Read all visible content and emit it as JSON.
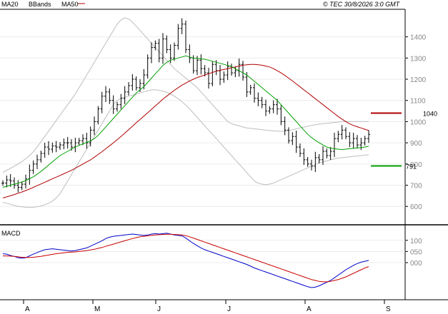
{
  "legend": [
    {
      "label": "MA20",
      "color": "#00a000"
    },
    {
      "label": "BBands",
      "color": "#b4b4b4"
    },
    {
      "label": "MA50",
      "color": "#b00000"
    }
  ],
  "copyright": "© TEC 30/8/2026 3:0 GMT",
  "macd_label": "MACD",
  "chart_data": [
    {
      "type": "ohlc",
      "title": "",
      "ylim": [
        520,
        1530
      ],
      "y_ticks": [
        "600",
        "700",
        "800",
        "900",
        "1000",
        "1100",
        "1200",
        "1300",
        "1400"
      ],
      "x_ticks": [
        "A",
        "M",
        "J",
        "J",
        "A",
        "S"
      ],
      "close_series": [
        710,
        725,
        720,
        700,
        690,
        705,
        730,
        770,
        800,
        820,
        850,
        880,
        870,
        885,
        880,
        890,
        900,
        900,
        880,
        900,
        910,
        920,
        900,
        960,
        1000,
        1060,
        1120,
        1140,
        1100,
        1060,
        1080,
        1110,
        1140,
        1170,
        1200,
        1160,
        1180,
        1220,
        1300,
        1350,
        1370,
        1300,
        1390,
        1340,
        1300,
        1360,
        1440,
        1460,
        1340,
        1300,
        1240,
        1290,
        1250,
        1230,
        1180,
        1270,
        1240,
        1200,
        1220,
        1260,
        1230,
        1240,
        1270,
        1210,
        1140,
        1160,
        1110,
        1100,
        1080,
        1050,
        1060,
        1080,
        1060,
        1000,
        960,
        910,
        930,
        880,
        850,
        820,
        800,
        790,
        830,
        820,
        860,
        840,
        860,
        920,
        940,
        960,
        930,
        900,
        920,
        890,
        900,
        920,
        940
      ],
      "ma20": [
        690,
        695,
        700,
        705,
        710,
        715,
        722,
        730,
        740,
        752,
        765,
        780,
        795,
        810,
        825,
        840,
        850,
        860,
        870,
        880,
        888,
        895,
        902,
        910,
        920,
        935,
        955,
        975,
        995,
        1015,
        1035,
        1055,
        1075,
        1095,
        1115,
        1135,
        1150,
        1165,
        1185,
        1205,
        1225,
        1245,
        1265,
        1280,
        1290,
        1295,
        1300,
        1305,
        1310,
        1305,
        1300,
        1298,
        1296,
        1294,
        1290,
        1285,
        1280,
        1275,
        1270,
        1265,
        1260,
        1250,
        1240,
        1230,
        1220,
        1205,
        1190,
        1175,
        1160,
        1145,
        1130,
        1115,
        1100,
        1080,
        1060,
        1040,
        1020,
        1000,
        980,
        960,
        940,
        925,
        912,
        900,
        890,
        880,
        875,
        872,
        870,
        868,
        870,
        872,
        874,
        876,
        878,
        880,
        884
      ],
      "ma50": [
        640,
        645,
        650,
        656,
        662,
        668,
        675,
        682,
        690,
        698,
        706,
        714,
        722,
        730,
        738,
        746,
        754,
        762,
        770,
        780,
        790,
        800,
        810,
        820,
        832,
        845,
        858,
        872,
        886,
        900,
        915,
        930,
        946,
        962,
        978,
        995,
        1010,
        1026,
        1042,
        1058,
        1074,
        1090,
        1106,
        1120,
        1134,
        1148,
        1160,
        1172,
        1182,
        1192,
        1200,
        1208,
        1214,
        1220,
        1226,
        1232,
        1238,
        1242,
        1246,
        1250,
        1254,
        1258,
        1262,
        1266,
        1268,
        1270,
        1270,
        1268,
        1266,
        1262,
        1258,
        1250,
        1240,
        1230,
        1218,
        1205,
        1192,
        1178,
        1164,
        1150,
        1136,
        1122,
        1108,
        1094,
        1080,
        1066,
        1052,
        1038,
        1024,
        1012,
        1000,
        990,
        982,
        976,
        970,
        964,
        958
      ],
      "bb_upper": [
        760,
        770,
        780,
        790,
        800,
        812,
        825,
        840,
        858,
        880,
        905,
        930,
        955,
        980,
        1005,
        1030,
        1055,
        1080,
        1105,
        1130,
        1160,
        1190,
        1220,
        1250,
        1280,
        1310,
        1340,
        1370,
        1400,
        1430,
        1460,
        1480,
        1490,
        1485,
        1470,
        1450,
        1430,
        1410,
        1390,
        1370,
        1350,
        1330,
        1310,
        1290,
        1270,
        1250,
        1235,
        1220,
        1205,
        1190,
        1175,
        1160,
        1140,
        1120,
        1100,
        1080,
        1060,
        1040,
        1020,
        1000,
        990,
        985,
        980,
        975,
        970,
        968,
        966,
        964,
        962,
        960,
        958,
        956,
        955,
        954,
        955,
        958,
        962,
        966,
        970,
        974,
        978,
        982,
        985,
        988,
        990,
        992,
        994,
        996,
        998,
        1000,
        1000,
        1000,
        1000,
        1000,
        1000,
        1000,
        1000
      ],
      "bb_lower": [
        620,
        615,
        610,
        605,
        600,
        598,
        596,
        595,
        596,
        598,
        602,
        608,
        615,
        625,
        640,
        660,
        690,
        720,
        750,
        780,
        810,
        840,
        870,
        900,
        930,
        960,
        990,
        1020,
        1050,
        1080,
        1100,
        1110,
        1115,
        1120,
        1125,
        1130,
        1135,
        1140,
        1145,
        1150,
        1150,
        1148,
        1144,
        1138,
        1130,
        1120,
        1108,
        1094,
        1078,
        1060,
        1040,
        1020,
        1000,
        980,
        960,
        940,
        920,
        900,
        880,
        860,
        840,
        820,
        800,
        780,
        760,
        740,
        720,
        710,
        705,
        702,
        705,
        710,
        718,
        726,
        734,
        742,
        750,
        758,
        766,
        774,
        782,
        790,
        798,
        805,
        810,
        815,
        820,
        824,
        828,
        830,
        832,
        834,
        836,
        838,
        840,
        842,
        844
      ],
      "annotations": [
        {
          "label": "1040",
          "value": 1040,
          "color": "#b00000"
        },
        {
          "label": "791",
          "value": 791,
          "color": "#00a000"
        }
      ]
    },
    {
      "type": "line",
      "title": "MACD",
      "ylim": [
        -160,
        160
      ],
      "y_ticks": [
        "000",
        "050",
        "100"
      ],
      "series": [
        {
          "color": "#0000c8",
          "values": [
            40,
            38,
            32,
            28,
            22,
            20,
            22,
            30,
            38,
            45,
            52,
            58,
            60,
            62,
            60,
            58,
            56,
            54,
            52,
            54,
            58,
            62,
            66,
            74,
            82,
            90,
            98,
            108,
            114,
            118,
            120,
            122,
            124,
            126,
            128,
            126,
            124,
            122,
            124,
            128,
            130,
            128,
            130,
            132,
            128,
            124,
            122,
            120,
            110,
            98,
            86,
            76,
            66,
            58,
            52,
            46,
            40,
            34,
            28,
            22,
            16,
            10,
            4,
            -2,
            -8,
            -16,
            -24,
            -30,
            -36,
            -42,
            -48,
            -54,
            -60,
            -66,
            -72,
            -78,
            -84,
            -90,
            -96,
            -102,
            -108,
            -112,
            -110,
            -104,
            -96,
            -88,
            -80,
            -68,
            -56,
            -44,
            -32,
            -22,
            -12,
            -4,
            2,
            6,
            10
          ]
        },
        {
          "color": "#c80000",
          "values": [
            30,
            30,
            29,
            28,
            26,
            24,
            23,
            23,
            24,
            26,
            28,
            31,
            34,
            37,
            40,
            42,
            44,
            46,
            47,
            48,
            50,
            52,
            54,
            57,
            60,
            64,
            68,
            73,
            78,
            83,
            88,
            93,
            98,
            103,
            108,
            112,
            116,
            118,
            120,
            122,
            124,
            125,
            126,
            127,
            127,
            126,
            125,
            124,
            121,
            116,
            110,
            104,
            98,
            92,
            86,
            80,
            74,
            68,
            62,
            56,
            50,
            44,
            38,
            32,
            26,
            20,
            14,
            8,
            2,
            -4,
            -10,
            -16,
            -22,
            -28,
            -34,
            -40,
            -46,
            -52,
            -58,
            -64,
            -70,
            -76,
            -80,
            -84,
            -86,
            -86,
            -84,
            -80,
            -76,
            -70,
            -64,
            -56,
            -48,
            -40,
            -32,
            -24,
            -18
          ]
        }
      ]
    }
  ]
}
